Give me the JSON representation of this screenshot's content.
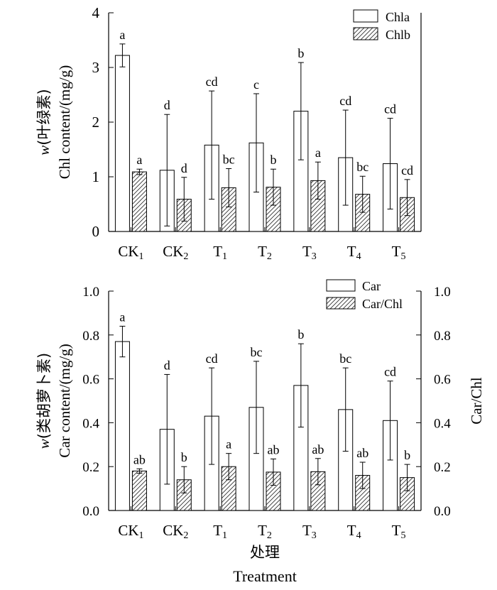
{
  "chart_data": [
    {
      "type": "bar",
      "categories": [
        "CK",
        "CK",
        "T",
        "T",
        "T",
        "T",
        "T"
      ],
      "category_subscripts": [
        "1",
        "2",
        "1",
        "2",
        "3",
        "4",
        "5"
      ],
      "ylabel_cn": "w(叶绿素)",
      "ylabel": "Chl content/(mg/g)",
      "ylim": [
        0,
        4
      ],
      "yticks": [
        "0",
        "1",
        "2",
        "3",
        "4"
      ],
      "series": [
        {
          "name": "Chla",
          "pattern": "open",
          "values": [
            3.22,
            1.12,
            1.58,
            1.62,
            2.2,
            1.35,
            1.24
          ],
          "errors": [
            0.21,
            1.02,
            0.99,
            0.9,
            0.89,
            0.87,
            0.83
          ],
          "letters": [
            "a",
            "d",
            "cd",
            "c",
            "b",
            "cd",
            "cd"
          ]
        },
        {
          "name": "Chlb",
          "pattern": "hatched",
          "values": [
            1.09,
            0.59,
            0.8,
            0.81,
            0.93,
            0.68,
            0.62
          ],
          "errors": [
            0.05,
            0.4,
            0.35,
            0.33,
            0.34,
            0.33,
            0.33
          ],
          "letters": [
            "a",
            "d",
            "bc",
            "b",
            "a",
            "bc",
            "cd"
          ]
        }
      ]
    },
    {
      "type": "bar",
      "categories": [
        "CK",
        "CK",
        "T",
        "T",
        "T",
        "T",
        "T"
      ],
      "category_subscripts": [
        "1",
        "2",
        "1",
        "2",
        "3",
        "4",
        "5"
      ],
      "ylabel_cn": "w(类胡萝卜素)",
      "ylabel": "Car content/(mg/g)",
      "ylabel_right": "Car/Chl",
      "xlabel_cn": "处理",
      "xlabel": "Treatment",
      "ylim": [
        0,
        1.0
      ],
      "yticks": [
        "0.0",
        "0.2",
        "0.4",
        "0.6",
        "0.8",
        "1.0"
      ],
      "series": [
        {
          "name": "Car",
          "pattern": "open",
          "values": [
            0.77,
            0.37,
            0.43,
            0.47,
            0.57,
            0.46,
            0.41
          ],
          "errors": [
            0.07,
            0.25,
            0.22,
            0.21,
            0.19,
            0.19,
            0.18
          ],
          "letters": [
            "a",
            "d",
            "cd",
            "bc",
            "b",
            "bc",
            "cd"
          ]
        },
        {
          "name": "Car/Chl",
          "pattern": "hatched",
          "values": [
            0.18,
            0.14,
            0.2,
            0.175,
            0.177,
            0.16,
            0.15
          ],
          "errors": [
            0.01,
            0.06,
            0.06,
            0.06,
            0.06,
            0.06,
            0.06
          ],
          "letters": [
            "ab",
            "b",
            "a",
            "ab",
            "ab",
            "ab",
            "b"
          ]
        }
      ]
    }
  ]
}
